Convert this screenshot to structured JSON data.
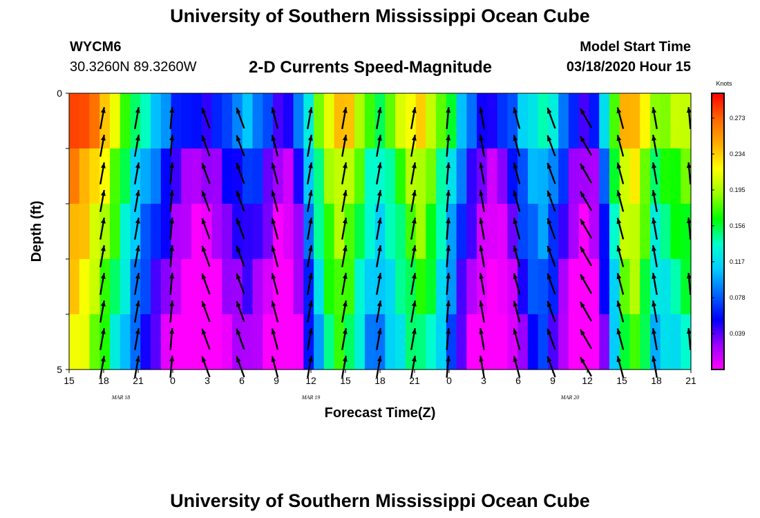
{
  "page": {
    "title_top": "University of Southern Mississippi Ocean Cube",
    "title_bottom": "University of Southern Mississippi Ocean Cube",
    "station_id": "WYCM6",
    "station_coords": "30.3260N 89.3260W",
    "plot_title": "2-D Currents Speed-Magnitude",
    "model_start_label": "Model Start Time",
    "model_start_value": "03/18/2020 Hour 15"
  },
  "colors": {
    "scale": [
      "#ff00ff",
      "#9900ff",
      "#0000ff",
      "#0066ff",
      "#00ccff",
      "#00ffcc",
      "#00ff00",
      "#99ff00",
      "#ffff00",
      "#ffaa00",
      "#ff6600",
      "#ff0000"
    ],
    "arrow": "#000000"
  },
  "chart_data": {
    "type": "heatmap",
    "title": "2-D Currents Speed-Magnitude",
    "xlabel": "Forecast Time(Z)",
    "ylabel": "Depth (ft)",
    "x_hours_from_start": [
      0,
      3,
      6,
      9,
      12,
      15,
      18,
      21,
      24,
      27,
      30,
      33,
      36,
      39,
      42,
      45,
      48,
      51,
      54
    ],
    "x_tick_labels": [
      "15",
      "18",
      "21",
      "0",
      "3",
      "6",
      "9",
      "12",
      "15",
      "18",
      "21",
      "0",
      "3",
      "6",
      "9",
      "12",
      "15",
      "18",
      "21"
    ],
    "date_labels": [
      {
        "text": "MAR  18",
        "hour": 4.5
      },
      {
        "text": "MAR  19",
        "hour": 21
      },
      {
        "text": "MAR  20",
        "hour": 43.5
      }
    ],
    "y_range": [
      0,
      5
    ],
    "y_tick_labels": [
      {
        "value": 0,
        "label": "0"
      },
      {
        "value": 1,
        "label": ""
      },
      {
        "value": 2,
        "label": ""
      },
      {
        "value": 3,
        "label": ""
      },
      {
        "value": 4,
        "label": ""
      },
      {
        "value": 5,
        "label": "5"
      }
    ],
    "depth_layers": [
      0,
      1,
      2,
      3,
      4
    ],
    "colorbar": {
      "unit_label": "Knots",
      "min": 0,
      "max": 0.3,
      "tick_labels": [
        "0.273",
        "0.234",
        "0.195",
        "0.156",
        "0.117",
        "0.078",
        "0.039"
      ],
      "tick_values": [
        0.273,
        0.234,
        0.195,
        0.156,
        0.117,
        0.078,
        0.039
      ]
    },
    "speed_profile_knots": [
      0.26,
      0.25,
      0.23,
      0.21,
      0.18,
      0.15,
      0.12,
      0.1,
      0.08,
      0.06,
      0.04,
      0.03,
      0.02,
      0.02,
      0.03,
      0.05,
      0.06,
      0.07,
      0.06,
      0.04,
      0.02,
      0.02,
      0.05,
      0.1,
      0.15,
      0.19,
      0.21,
      0.2,
      0.17,
      0.14,
      0.13,
      0.15,
      0.17,
      0.19,
      0.2,
      0.18,
      0.15,
      0.12,
      0.08,
      0.05,
      0.03,
      0.02,
      0.03,
      0.05,
      0.08,
      0.1,
      0.11,
      0.09,
      0.06,
      0.03,
      0.02,
      0.03,
      0.08,
      0.15,
      0.21,
      0.22,
      0.19,
      0.15,
      0.16,
      0.17,
      0.18
    ],
    "layer_speed_offsets_knots": [
      0.03,
      0.0,
      -0.015,
      -0.03,
      -0.045
    ],
    "arrows": {
      "hours": [
        3,
        6,
        9,
        12,
        15,
        18,
        21,
        24,
        27,
        30,
        33,
        36,
        39,
        42,
        45,
        48,
        51,
        54
      ],
      "direction_deg": [
        10,
        10,
        5,
        340,
        340,
        345,
        10,
        10,
        10,
        10,
        5,
        350,
        345,
        340,
        330,
        345,
        350,
        355
      ],
      "half_layer_rows": [
        0,
        1,
        2,
        3,
        4,
        5,
        6,
        7,
        8,
        9
      ]
    }
  }
}
